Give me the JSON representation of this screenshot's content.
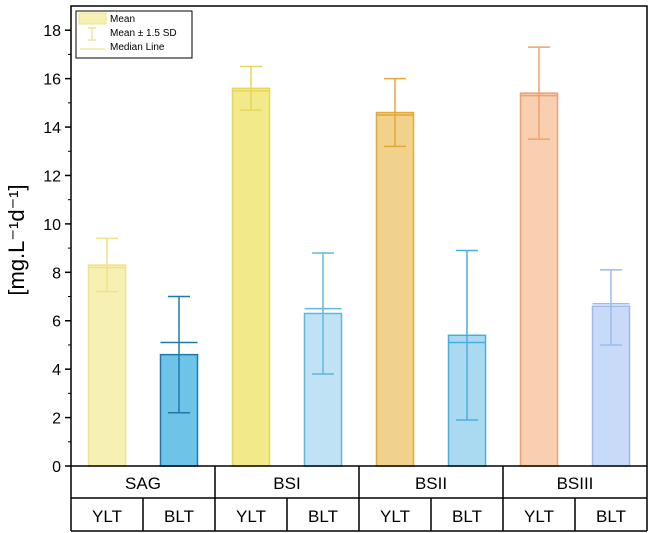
{
  "chart_data": {
    "type": "bar",
    "ylabel": "[mg.L⁻¹d⁻¹]",
    "ylim": [
      0,
      19
    ],
    "yticks": [
      0,
      2,
      4,
      6,
      8,
      10,
      12,
      14,
      16,
      18
    ],
    "ytick_labels": [
      "0",
      "2",
      "4",
      "6",
      "8",
      "10",
      "12",
      "14",
      "16",
      "18"
    ],
    "groups": [
      "SAG",
      "BSI",
      "BSII",
      "BSIII"
    ],
    "subgroups": [
      "YLT",
      "BLT"
    ],
    "bars": [
      {
        "group": "SAG",
        "sub": "YLT",
        "mean": 8.3,
        "median": 8.2,
        "err_low": 7.2,
        "err_high": 9.4,
        "fill": "#f7f0b3",
        "stroke": "#efe38a"
      },
      {
        "group": "SAG",
        "sub": "BLT",
        "mean": 4.6,
        "median": 5.1,
        "err_low": 2.2,
        "err_high": 7.0,
        "fill": "#6ec3e8",
        "stroke": "#1f78a8"
      },
      {
        "group": "BSI",
        "sub": "YLT",
        "mean": 15.6,
        "median": 15.5,
        "err_low": 14.7,
        "err_high": 16.5,
        "fill": "#f2e98a",
        "stroke": "#e8d65a"
      },
      {
        "group": "BSI",
        "sub": "BLT",
        "mean": 6.3,
        "median": 6.5,
        "err_low": 3.8,
        "err_high": 8.8,
        "fill": "#bfe3f5",
        "stroke": "#5fb8e0"
      },
      {
        "group": "BSII",
        "sub": "YLT",
        "mean": 14.6,
        "median": 14.5,
        "err_low": 13.2,
        "err_high": 16.0,
        "fill": "#f0d28c",
        "stroke": "#e3a83a"
      },
      {
        "group": "BSII",
        "sub": "BLT",
        "mean": 5.4,
        "median": 5.1,
        "err_low": 1.9,
        "err_high": 8.9,
        "fill": "#a9daf2",
        "stroke": "#4aaedc"
      },
      {
        "group": "BSIII",
        "sub": "YLT",
        "mean": 15.4,
        "median": 15.3,
        "err_low": 13.5,
        "err_high": 17.3,
        "fill": "#f8cfb0",
        "stroke": "#f0a070"
      },
      {
        "group": "BSIII",
        "sub": "BLT",
        "mean": 6.6,
        "median": 6.7,
        "err_low": 5.0,
        "err_high": 8.1,
        "fill": "#c9daf8",
        "stroke": "#9dbaf0"
      }
    ],
    "legend": {
      "position": "top-left",
      "entries": [
        "Mean",
        "Mean ± 1.5 SD",
        "Median Line"
      ],
      "swatch_color": "#efe38a"
    }
  }
}
